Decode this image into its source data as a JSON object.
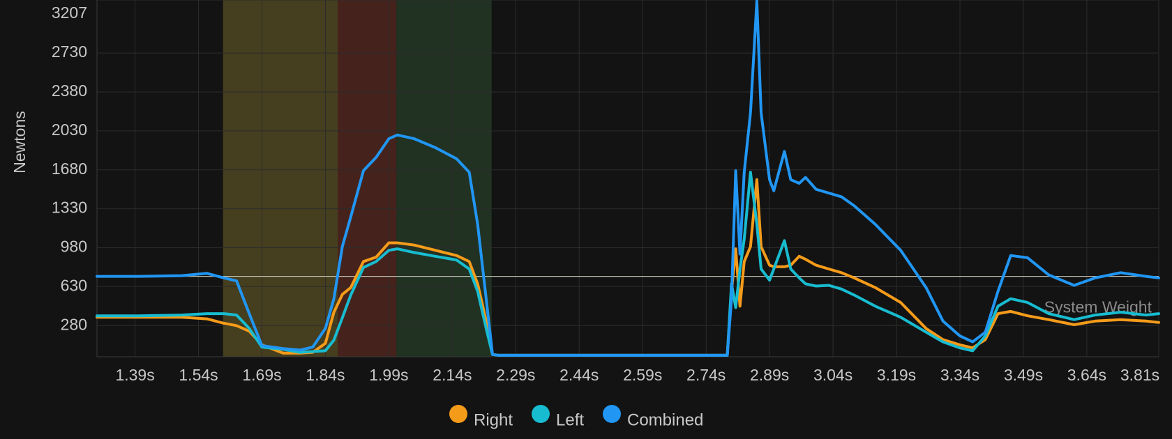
{
  "chart_data": {
    "type": "line",
    "y_label": "Newtons",
    "xlim": [
      1.3,
      3.81
    ],
    "ylim": [
      0,
      3207
    ],
    "yticks": [
      280,
      630,
      980,
      1330,
      1680,
      2030,
      2380,
      2730,
      3207
    ],
    "xticks": [
      {
        "value": 1.39,
        "label": "1.39s"
      },
      {
        "value": 1.54,
        "label": "1.54s"
      },
      {
        "value": 1.69,
        "label": "1.69s"
      },
      {
        "value": 1.84,
        "label": "1.84s"
      },
      {
        "value": 1.99,
        "label": "1.99s"
      },
      {
        "value": 2.14,
        "label": "2.14s"
      },
      {
        "value": 2.29,
        "label": "2.29s"
      },
      {
        "value": 2.44,
        "label": "2.44s"
      },
      {
        "value": 2.59,
        "label": "2.59s"
      },
      {
        "value": 2.74,
        "label": "2.74s"
      },
      {
        "value": 2.89,
        "label": "2.89s"
      },
      {
        "value": 3.04,
        "label": "3.04s"
      },
      {
        "value": 3.19,
        "label": "3.19s"
      },
      {
        "value": 3.34,
        "label": "3.34s"
      },
      {
        "value": 3.49,
        "label": "3.49s"
      },
      {
        "value": 3.64,
        "label": "3.64s"
      },
      {
        "value": 3.81,
        "label": "3.81s"
      }
    ],
    "grid": true,
    "shaded_regions": [
      {
        "x0": 1.598,
        "x1": 1.869,
        "color": "#453f1f"
      },
      {
        "x0": 1.869,
        "x1": 2.008,
        "color": "#45231c"
      },
      {
        "x0": 2.008,
        "x1": 2.233,
        "color": "#213222"
      }
    ],
    "reference_line": {
      "value": 723,
      "label": "System Weight"
    },
    "x": [
      1.3,
      1.4,
      1.5,
      1.56,
      1.6,
      1.63,
      1.66,
      1.69,
      1.74,
      1.78,
      1.81,
      1.84,
      1.86,
      1.88,
      1.9,
      1.93,
      1.96,
      1.99,
      2.01,
      2.05,
      2.1,
      2.15,
      2.18,
      2.2,
      2.22,
      2.235,
      2.25,
      2.5,
      2.79,
      2.8,
      2.81,
      2.82,
      2.83,
      2.845,
      2.86,
      2.87,
      2.89,
      2.9,
      2.925,
      2.94,
      2.96,
      2.975,
      3.0,
      3.03,
      3.06,
      3.09,
      3.14,
      3.2,
      3.26,
      3.3,
      3.34,
      3.37,
      3.4,
      3.43,
      3.46,
      3.5,
      3.55,
      3.61,
      3.66,
      3.72,
      3.78,
      3.81
    ],
    "series": [
      {
        "name": "Right",
        "color": "#f59b1a",
        "values": [
          355,
          355,
          355,
          341,
          301,
          280,
          230,
          107,
          33,
          33,
          40,
          120,
          400,
          560,
          622,
          856,
          896,
          1024,
          1024,
          1004,
          957,
          910,
          856,
          656,
          321,
          20,
          13,
          13,
          13,
          589,
          970,
          455,
          856,
          990,
          1592,
          990,
          823,
          809,
          809,
          823,
          903,
          876,
          823,
          789,
          756,
          709,
          622,
          488,
          254,
          154,
          107,
          80,
          154,
          388,
          408,
          368,
          334,
          288,
          321,
          334,
          321,
          308
        ]
      },
      {
        "name": "Left",
        "color": "#18bcd0",
        "values": [
          368,
          368,
          375,
          388,
          388,
          375,
          254,
          87,
          67,
          40,
          47,
          54,
          150,
          350,
          555,
          803,
          856,
          957,
          970,
          937,
          903,
          870,
          789,
          589,
          254,
          20,
          13,
          13,
          13,
          656,
          442,
          789,
          1057,
          1659,
          1191,
          789,
          689,
          789,
          1044,
          789,
          709,
          656,
          636,
          642,
          609,
          555,
          455,
          355,
          221,
          134,
          80,
          54,
          187,
          455,
          522,
          488,
          388,
          334,
          375,
          401,
          375,
          388
        ]
      },
      {
        "name": "Combined",
        "color": "#2196f3",
        "values": [
          723,
          723,
          729,
          750,
          709,
          682,
          388,
          100,
          74,
          60,
          87,
          254,
          522,
          990,
          1258,
          1673,
          1793,
          1960,
          1994,
          1960,
          1880,
          1780,
          1659,
          1191,
          522,
          20,
          13,
          13,
          13,
          522,
          1673,
          923,
          1659,
          2194,
          3198,
          2194,
          1592,
          1492,
          1846,
          1592,
          1559,
          1612,
          1505,
          1472,
          1438,
          1358,
          1191,
          957,
          622,
          321,
          187,
          134,
          221,
          589,
          910,
          890,
          736,
          642,
          709,
          756,
          723,
          709
        ]
      }
    ]
  }
}
